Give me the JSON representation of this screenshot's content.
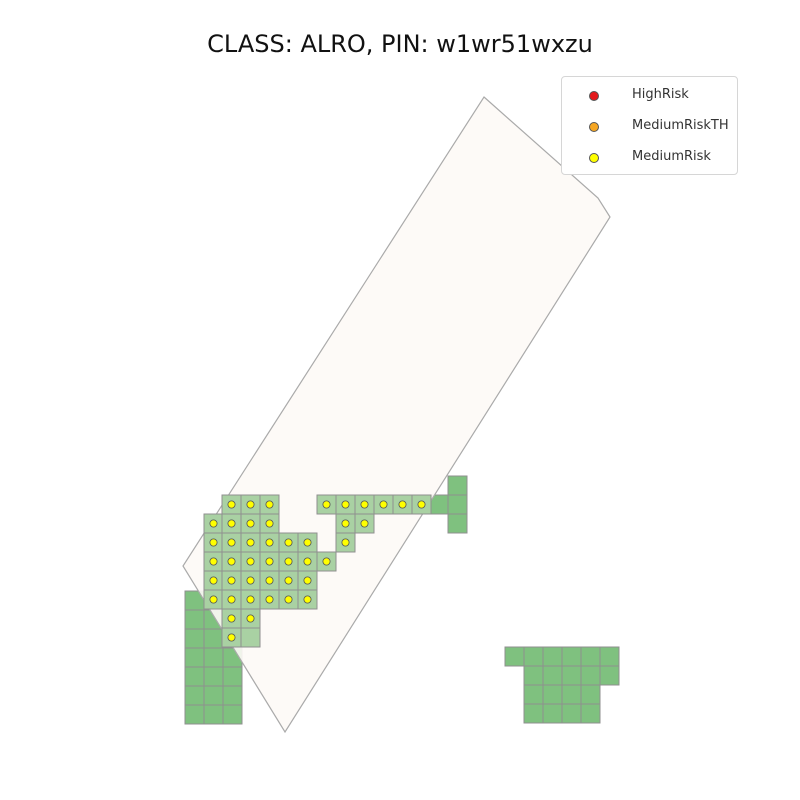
{
  "title": "CLASS: ALRO, PIN: w1wr51wxzu",
  "legend": [
    {
      "label": "HighRisk",
      "color": "#e31a1c"
    },
    {
      "label": "MediumRiskTH",
      "color": "#f5a623"
    },
    {
      "label": "MediumRisk",
      "color": "#ffff00"
    }
  ],
  "colors": {
    "parcel_fill": "#fdf9f6",
    "parcel_stroke": "#aaaaaa",
    "cell_dark": "#7fc17f",
    "cell_light": "#a9d1a3",
    "cell_stroke": "#8f8f8f"
  }
}
